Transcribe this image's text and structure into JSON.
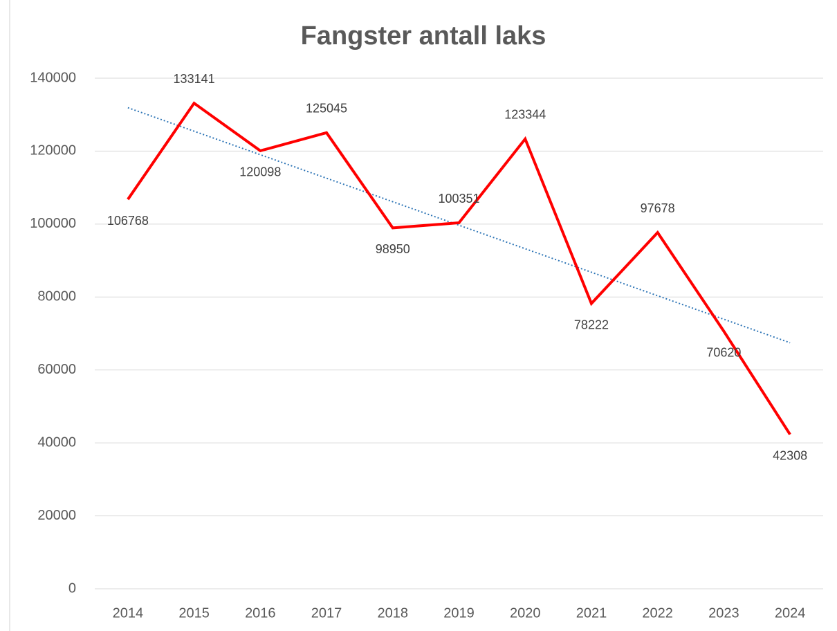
{
  "chart_data": {
    "type": "line",
    "title": "Fangster antall laks",
    "categories": [
      "2014",
      "2015",
      "2016",
      "2017",
      "2018",
      "2019",
      "2020",
      "2021",
      "2022",
      "2023",
      "2024"
    ],
    "series": [
      {
        "name": "Fangster antall laks",
        "color": "#ff0000",
        "values": [
          106768,
          133141,
          120098,
          125045,
          98950,
          100351,
          123344,
          78222,
          97678,
          70620,
          42308
        ]
      }
    ],
    "ylim": [
      0,
      140000
    ],
    "yticks": [
      0,
      20000,
      40000,
      60000,
      80000,
      100000,
      120000,
      140000
    ],
    "grid": true,
    "data_labels": true,
    "trendline": {
      "type": "linear",
      "color": "#2e75b6"
    }
  }
}
